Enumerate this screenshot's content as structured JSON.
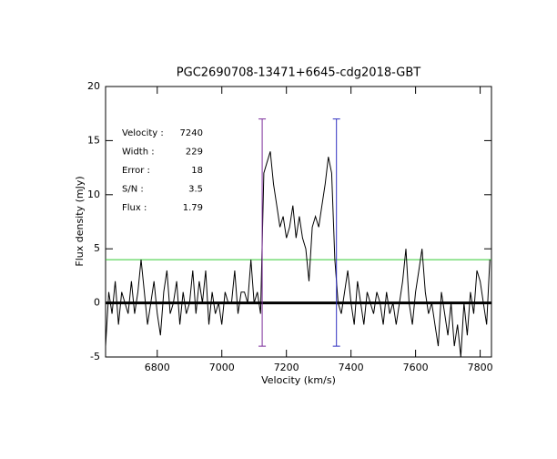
{
  "chart_data": {
    "type": "line",
    "title": "PGC2690708-13471+6645-cdg2018-GBT",
    "x_label": "Velocity (km/s)",
    "y_label": "Flux density (mJy)",
    "x": [
      6640,
      6650,
      6660,
      6670,
      6680,
      6690,
      6700,
      6710,
      6720,
      6730,
      6740,
      6750,
      6760,
      6770,
      6780,
      6790,
      6800,
      6810,
      6820,
      6830,
      6840,
      6850,
      6860,
      6870,
      6880,
      6890,
      6900,
      6910,
      6920,
      6930,
      6940,
      6950,
      6960,
      6970,
      6980,
      6990,
      7000,
      7010,
      7020,
      7030,
      7040,
      7050,
      7060,
      7070,
      7080,
      7090,
      7100,
      7110,
      7120,
      7130,
      7140,
      7150,
      7160,
      7170,
      7180,
      7190,
      7200,
      7210,
      7220,
      7230,
      7240,
      7250,
      7260,
      7270,
      7280,
      7290,
      7300,
      7310,
      7320,
      7330,
      7340,
      7350,
      7360,
      7370,
      7380,
      7390,
      7400,
      7410,
      7420,
      7430,
      7440,
      7450,
      7460,
      7470,
      7480,
      7490,
      7500,
      7510,
      7520,
      7530,
      7540,
      7550,
      7560,
      7570,
      7580,
      7590,
      7600,
      7610,
      7620,
      7630,
      7640,
      7650,
      7660,
      7670,
      7680,
      7690,
      7700,
      7710,
      7720,
      7730,
      7740,
      7750,
      7760,
      7770,
      7780,
      7790,
      7800,
      7810,
      7820,
      7830
    ],
    "series": [
      {
        "color": "#000000",
        "values": [
          -4,
          1,
          -1,
          2,
          -2,
          1,
          0,
          -1,
          2,
          -1,
          1,
          4,
          1,
          -2,
          0,
          2,
          -1,
          -3,
          1,
          3,
          -1,
          0,
          2,
          -2,
          1,
          -1,
          0,
          3,
          -1,
          2,
          0,
          3,
          -2,
          1,
          -1,
          0,
          -2,
          1,
          0,
          0,
          3,
          -1,
          1,
          1,
          0,
          4,
          0,
          1,
          -1,
          12,
          13,
          14,
          11,
          9,
          7,
          8,
          6,
          7,
          9,
          6,
          8,
          6,
          5,
          2,
          7,
          8,
          7,
          9,
          11,
          13.5,
          12,
          4,
          0,
          -1,
          1,
          3,
          0,
          -2,
          2,
          0,
          -2,
          1,
          0,
          -1,
          1,
          0,
          -2,
          1,
          -1,
          0,
          -2,
          0,
          2,
          5,
          0,
          -2,
          1,
          3,
          5,
          1,
          -1,
          0,
          -2,
          -4,
          1,
          -1,
          -3,
          0,
          -4,
          -2,
          -5,
          0,
          -3,
          1,
          -1,
          3,
          2,
          0,
          -2,
          4
        ]
      }
    ],
    "markers": [
      {
        "x": 7125,
        "color": "#7a2a9a"
      },
      {
        "x": 7355,
        "color": "#3030c0"
      }
    ],
    "marker_range": [
      -4,
      17
    ],
    "threshold": {
      "value": 4,
      "color": "#33cc33"
    },
    "annotations": [
      {
        "label": "Velocity :",
        "value": 7240
      },
      {
        "label": "Width :",
        "value": 229
      },
      {
        "label": "Error :",
        "value": 18
      },
      {
        "label": "S/N :",
        "value": 3.5
      },
      {
        "label": "Flux :",
        "value": 1.79
      }
    ],
    "annotation_color": "#3a2a9c",
    "xlim": [
      6640,
      7835
    ],
    "ylim": [
      -5,
      20
    ],
    "xticks": [
      6800,
      7000,
      7200,
      7400,
      7600,
      7800
    ],
    "yticks": [
      -5,
      0,
      5,
      10,
      15,
      20
    ]
  }
}
